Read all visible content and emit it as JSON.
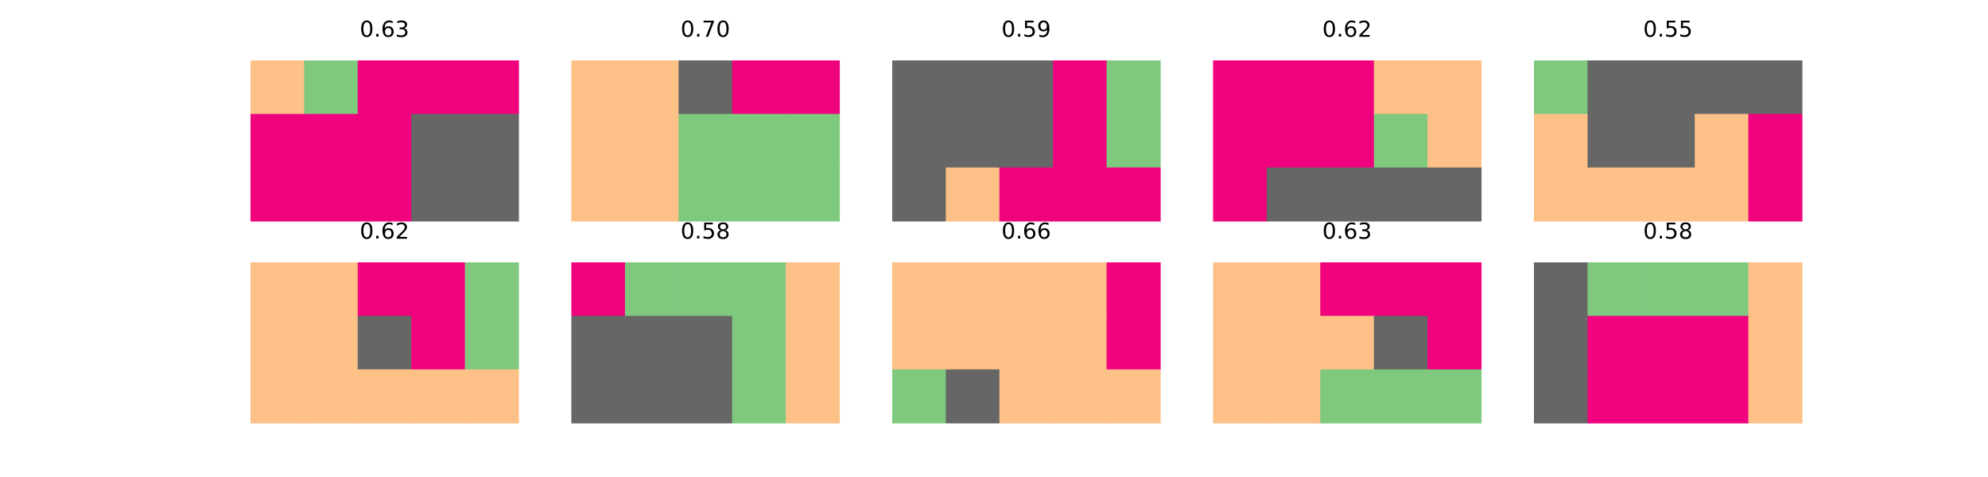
{
  "palette": {
    "0": "#fdc086",
    "1": "#7fc97f",
    "2": "#f0027f",
    "3": "#666666"
  },
  "chart_data": {
    "type": "heatmap",
    "layout": {
      "rows": 2,
      "cols": 5
    },
    "grid_size": {
      "rows": 3,
      "cols": 5
    },
    "panels": [
      {
        "title": "0.63",
        "cells": [
          [
            0,
            1,
            2,
            2,
            2
          ],
          [
            2,
            2,
            2,
            3,
            3
          ],
          [
            2,
            2,
            2,
            3,
            3
          ]
        ]
      },
      {
        "title": "0.70",
        "cells": [
          [
            0,
            0,
            3,
            2,
            2
          ],
          [
            0,
            0,
            1,
            1,
            1
          ],
          [
            0,
            0,
            1,
            1,
            1
          ]
        ]
      },
      {
        "title": "0.59",
        "cells": [
          [
            3,
            3,
            3,
            2,
            1
          ],
          [
            3,
            3,
            3,
            2,
            1
          ],
          [
            3,
            0,
            2,
            2,
            2
          ]
        ]
      },
      {
        "title": "0.62",
        "cells": [
          [
            2,
            2,
            2,
            0,
            0
          ],
          [
            2,
            2,
            2,
            1,
            0
          ],
          [
            2,
            3,
            3,
            3,
            3
          ]
        ]
      },
      {
        "title": "0.55",
        "cells": [
          [
            1,
            3,
            3,
            3,
            3
          ],
          [
            0,
            3,
            3,
            0,
            2
          ],
          [
            0,
            0,
            0,
            0,
            2
          ]
        ]
      },
      {
        "title": "0.62",
        "cells": [
          [
            0,
            0,
            2,
            2,
            1
          ],
          [
            0,
            0,
            3,
            2,
            1
          ],
          [
            0,
            0,
            0,
            0,
            0
          ]
        ]
      },
      {
        "title": "0.58",
        "cells": [
          [
            2,
            1,
            1,
            1,
            0
          ],
          [
            3,
            3,
            3,
            1,
            0
          ],
          [
            3,
            3,
            3,
            1,
            0
          ]
        ]
      },
      {
        "title": "0.66",
        "cells": [
          [
            0,
            0,
            0,
            0,
            2
          ],
          [
            0,
            0,
            0,
            0,
            2
          ],
          [
            1,
            3,
            0,
            0,
            0
          ]
        ]
      },
      {
        "title": "0.63",
        "cells": [
          [
            0,
            0,
            2,
            2,
            2
          ],
          [
            0,
            0,
            0,
            3,
            2
          ],
          [
            0,
            0,
            1,
            1,
            1
          ]
        ]
      },
      {
        "title": "0.58",
        "cells": [
          [
            3,
            1,
            1,
            1,
            0
          ],
          [
            3,
            2,
            2,
            2,
            0
          ],
          [
            3,
            2,
            2,
            2,
            0
          ]
        ]
      }
    ]
  }
}
